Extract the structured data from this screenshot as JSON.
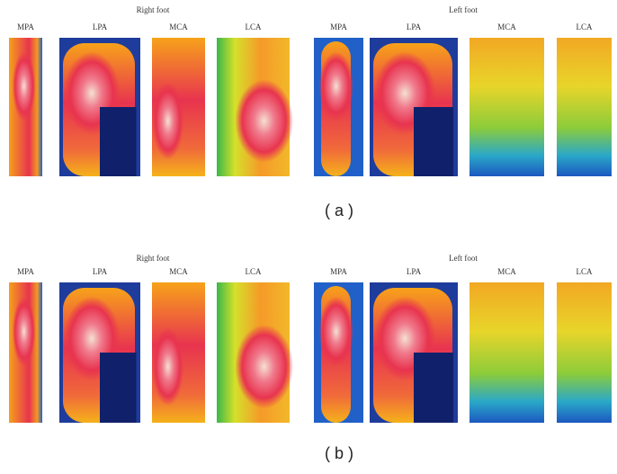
{
  "panels": [
    {
      "label": "( a )",
      "right_foot": {
        "title": "Right foot",
        "regions": [
          "MPA",
          "LPA",
          "MCA",
          "LCA"
        ]
      },
      "left_foot": {
        "title": "Left foot",
        "regions": [
          "MPA",
          "LPA",
          "MCA",
          "LCA"
        ]
      }
    },
    {
      "label": "( b )",
      "right_foot": {
        "title": "Right foot",
        "regions": [
          "MPA",
          "LPA",
          "MCA",
          "LCA"
        ]
      },
      "left_foot": {
        "title": "Left foot",
        "regions": [
          "MPA",
          "LPA",
          "MCA",
          "LCA"
        ]
      }
    }
  ]
}
